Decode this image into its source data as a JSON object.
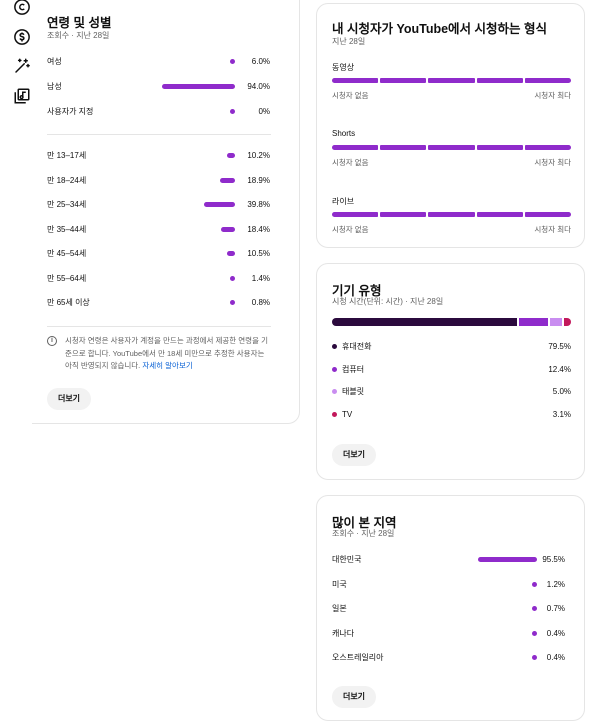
{
  "sidebar": {
    "icons": [
      "copyright-icon",
      "dollar-icon",
      "magic-wand-icon",
      "music-library-icon"
    ]
  },
  "age_gender": {
    "title": "연령 및 성별",
    "subtitle": "조회수 · 지난 28일",
    "gender": [
      {
        "label": "여성",
        "value": "6.0%",
        "fraction": 0.06
      },
      {
        "label": "남성",
        "value": "94.0%",
        "fraction": 0.94
      },
      {
        "label": "사용자가 지정",
        "value": "0%",
        "fraction": 0.0
      }
    ],
    "ages": [
      {
        "label": "만 13–17세",
        "value": "10.2%",
        "fraction": 0.102
      },
      {
        "label": "만 18–24세",
        "value": "18.9%",
        "fraction": 0.189
      },
      {
        "label": "만 25–34세",
        "value": "39.8%",
        "fraction": 0.398
      },
      {
        "label": "만 35–44세",
        "value": "18.4%",
        "fraction": 0.184
      },
      {
        "label": "만 45–54세",
        "value": "10.5%",
        "fraction": 0.105
      },
      {
        "label": "만 55–64세",
        "value": "1.4%",
        "fraction": 0.014
      },
      {
        "label": "만 65세 이상",
        "value": "0.8%",
        "fraction": 0.008
      }
    ],
    "info_text": "시청자 연령은 사용자가 계정을 만드는 과정에서 제공한 연령을 기준으로 합니다. YouTube에서 만 18세 미만으로 추정한 사용자는 아직 반영되지 않습니다.",
    "info_link": "자세히 알아보기",
    "more_label": "더보기"
  },
  "formats": {
    "title": "내 시청자가 YouTube에서 시청하는 형식",
    "subtitle": "지난 28일",
    "items": [
      {
        "label": "동영상",
        "low": "시청자 없음",
        "high": "시청자 최다"
      },
      {
        "label": "Shorts",
        "low": "시청자 없음",
        "high": "시청자 최다"
      },
      {
        "label": "라이브",
        "low": "시청자 없음",
        "high": "시청자 최다"
      }
    ]
  },
  "device": {
    "title": "기기 유형",
    "subtitle": "시청 시간(단위: 시간) · 지난 28일",
    "items": [
      {
        "label": "휴대전화",
        "value": "79.5%",
        "fraction": 0.795,
        "color": "#2b0a3d"
      },
      {
        "label": "컴퓨터",
        "value": "12.4%",
        "fraction": 0.124,
        "color": "#8f2bcb"
      },
      {
        "label": "태블릿",
        "value": "5.0%",
        "fraction": 0.05,
        "color": "#c98df0"
      },
      {
        "label": "TV",
        "value": "3.1%",
        "fraction": 0.031,
        "color": "#c2185b"
      }
    ],
    "more_label": "더보기"
  },
  "geography": {
    "title": "많이 본 지역",
    "subtitle": "조회수 · 지난 28일",
    "items": [
      {
        "label": "대한민국",
        "value": "95.5%",
        "fraction": 0.955
      },
      {
        "label": "미국",
        "value": "1.2%",
        "fraction": 0.012
      },
      {
        "label": "일본",
        "value": "0.7%",
        "fraction": 0.007
      },
      {
        "label": "캐나다",
        "value": "0.4%",
        "fraction": 0.004
      },
      {
        "label": "오스트레일리아",
        "value": "0.4%",
        "fraction": 0.004
      }
    ],
    "more_label": "더보기"
  },
  "colors": {
    "accent": "#8f2bcb",
    "link": "#065fd4",
    "secondary_text": "#606060"
  }
}
